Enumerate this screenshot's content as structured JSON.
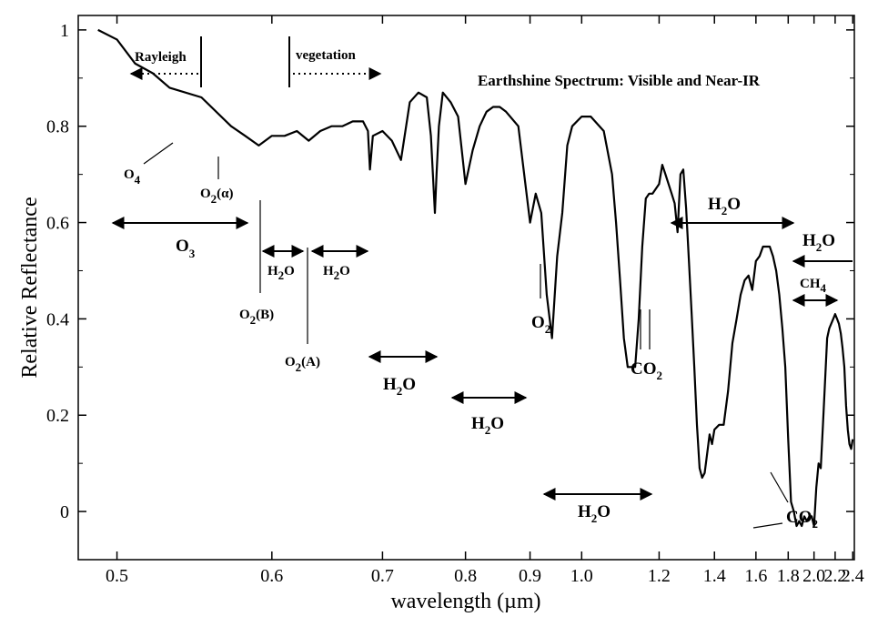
{
  "chart_data": {
    "type": "line",
    "title": "Earthshine Spectrum: Visible and Near-IR",
    "xlabel": "wavelength (µm)",
    "ylabel": "Relative Reflectance",
    "xscale": "reciprocal",
    "xlim": [
      0.48,
      2.42
    ],
    "ylim": [
      -0.1,
      1.03
    ],
    "grid": false,
    "x_ticks": [
      "0.5",
      "0.6",
      "0.7",
      "0.8",
      "0.9",
      "1.0",
      "1.2",
      "1.4",
      "1.6",
      "1.8",
      "2.0",
      "2.2",
      "2.4"
    ],
    "y_ticks": [
      "0",
      "0.2",
      "0.4",
      "0.6",
      "0.8",
      "1"
    ],
    "series": [
      {
        "x": [
          0.49,
          0.5,
          0.51,
          0.52,
          0.53,
          0.55,
          0.57,
          0.58,
          0.59,
          0.6,
          0.61,
          0.62,
          0.63,
          0.64,
          0.65,
          0.66,
          0.67,
          0.68,
          0.685,
          0.687,
          0.69,
          0.7,
          0.71,
          0.72,
          0.73,
          0.74,
          0.75,
          0.755,
          0.76,
          0.762,
          0.765,
          0.77,
          0.78,
          0.79,
          0.8,
          0.81,
          0.82,
          0.83,
          0.84,
          0.85,
          0.86,
          0.88,
          0.9,
          0.91,
          0.92,
          0.93,
          0.94,
          0.95,
          0.96,
          0.97,
          0.98,
          1.0,
          1.02,
          1.05,
          1.07,
          1.08,
          1.09,
          1.1,
          1.11,
          1.12,
          1.13,
          1.14,
          1.15,
          1.16,
          1.17,
          1.18,
          1.2,
          1.21,
          1.22,
          1.23,
          1.24,
          1.25,
          1.26,
          1.27,
          1.28,
          1.29,
          1.3,
          1.31,
          1.32,
          1.33,
          1.34,
          1.35,
          1.36,
          1.37,
          1.38,
          1.39,
          1.4,
          1.42,
          1.44,
          1.46,
          1.48,
          1.5,
          1.52,
          1.54,
          1.56,
          1.58,
          1.6,
          1.62,
          1.64,
          1.66,
          1.68,
          1.7,
          1.72,
          1.74,
          1.76,
          1.78,
          1.8,
          1.82,
          1.84,
          1.86,
          1.88,
          1.9,
          1.92,
          1.94,
          1.96,
          1.98,
          2.0,
          2.02,
          2.04,
          2.06,
          2.08,
          2.1,
          2.12,
          2.14,
          2.16,
          2.18,
          2.2,
          2.22,
          2.24,
          2.26,
          2.28,
          2.3,
          2.32,
          2.34,
          2.36,
          2.38,
          2.4
        ],
        "y": [
          1.0,
          0.98,
          0.93,
          0.91,
          0.88,
          0.86,
          0.8,
          0.78,
          0.76,
          0.78,
          0.78,
          0.79,
          0.77,
          0.79,
          0.8,
          0.8,
          0.81,
          0.81,
          0.79,
          0.71,
          0.78,
          0.79,
          0.77,
          0.73,
          0.85,
          0.87,
          0.86,
          0.78,
          0.62,
          0.7,
          0.8,
          0.87,
          0.85,
          0.82,
          0.68,
          0.75,
          0.8,
          0.83,
          0.84,
          0.84,
          0.83,
          0.8,
          0.6,
          0.66,
          0.62,
          0.45,
          0.36,
          0.53,
          0.62,
          0.76,
          0.8,
          0.82,
          0.82,
          0.79,
          0.7,
          0.6,
          0.48,
          0.36,
          0.3,
          0.3,
          0.3,
          0.4,
          0.55,
          0.65,
          0.66,
          0.66,
          0.68,
          0.72,
          0.7,
          0.68,
          0.66,
          0.64,
          0.58,
          0.7,
          0.71,
          0.63,
          0.52,
          0.41,
          0.3,
          0.18,
          0.09,
          0.07,
          0.08,
          0.12,
          0.16,
          0.14,
          0.17,
          0.18,
          0.18,
          0.25,
          0.35,
          0.4,
          0.45,
          0.48,
          0.49,
          0.46,
          0.52,
          0.53,
          0.55,
          0.55,
          0.55,
          0.53,
          0.5,
          0.45,
          0.38,
          0.3,
          0.15,
          0.02,
          0.0,
          -0.03,
          -0.02,
          -0.03,
          -0.01,
          -0.02,
          -0.01,
          -0.01,
          -0.03,
          0.05,
          0.1,
          0.09,
          0.18,
          0.27,
          0.36,
          0.38,
          0.39,
          0.4,
          0.41,
          0.4,
          0.39,
          0.37,
          0.34,
          0.3,
          0.22,
          0.17,
          0.14,
          0.13,
          0.15
        ]
      }
    ],
    "annotations": {
      "rayleigh": "Rayleigh",
      "vegetation": "vegetation",
      "o4": "O",
      "o4_sub": "4",
      "o2_alpha": "O",
      "o2_alpha_sub": "2",
      "o2_alpha_suffix": "(α)",
      "o3": "O",
      "o3_sub": "3",
      "o2_b": "O",
      "o2_b_sub": "2",
      "o2_b_suffix": "(B)",
      "o2_a": "O",
      "o2_a_sub": "2",
      "o2_a_suffix": "(A)",
      "o2": "O",
      "o2_sub": "2",
      "h2o_h": "H",
      "h2o_sub": "2",
      "h2o_o": "O",
      "co2": "CO",
      "co2_sub": "2",
      "ch4": "CH",
      "ch4_sub": "4"
    }
  }
}
